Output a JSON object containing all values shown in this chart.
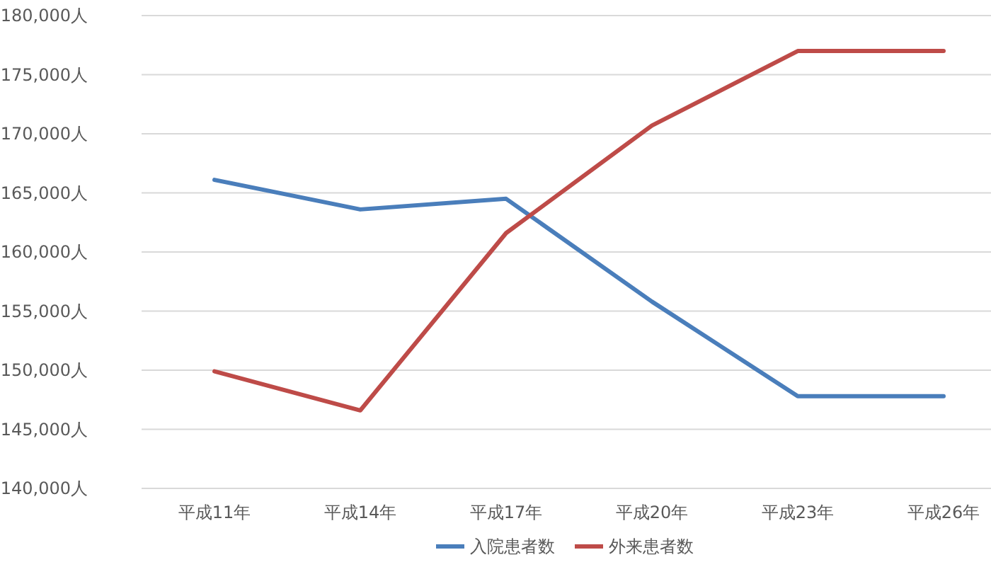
{
  "chart_data": {
    "type": "line",
    "categories": [
      "平成11年",
      "平成14年",
      "平成17年",
      "平成20年",
      "平成23年",
      "平成26年"
    ],
    "series": [
      {
        "name": "入院患者数",
        "color": "#4a7ebb",
        "values": [
          166100,
          163600,
          164500,
          155800,
          147800,
          147800
        ]
      },
      {
        "name": "外来患者数",
        "color": "#be4b48",
        "values": [
          149900,
          146600,
          161600,
          170700,
          177000,
          177000
        ]
      }
    ],
    "ylim": [
      140000,
      180000
    ],
    "yticks": [
      {
        "value": 140000,
        "label": "140,000人"
      },
      {
        "value": 145000,
        "label": "145,000人"
      },
      {
        "value": 150000,
        "label": "150,000人"
      },
      {
        "value": 155000,
        "label": "155,000人"
      },
      {
        "value": 160000,
        "label": "160,000人"
      },
      {
        "value": 165000,
        "label": "165,000人"
      },
      {
        "value": 170000,
        "label": "170,000人"
      },
      {
        "value": 175000,
        "label": "175,000人"
      },
      {
        "value": 180000,
        "label": "180,000人"
      }
    ],
    "grid": "y",
    "legend": "bottom",
    "marker": "none",
    "line_style": "solid"
  }
}
